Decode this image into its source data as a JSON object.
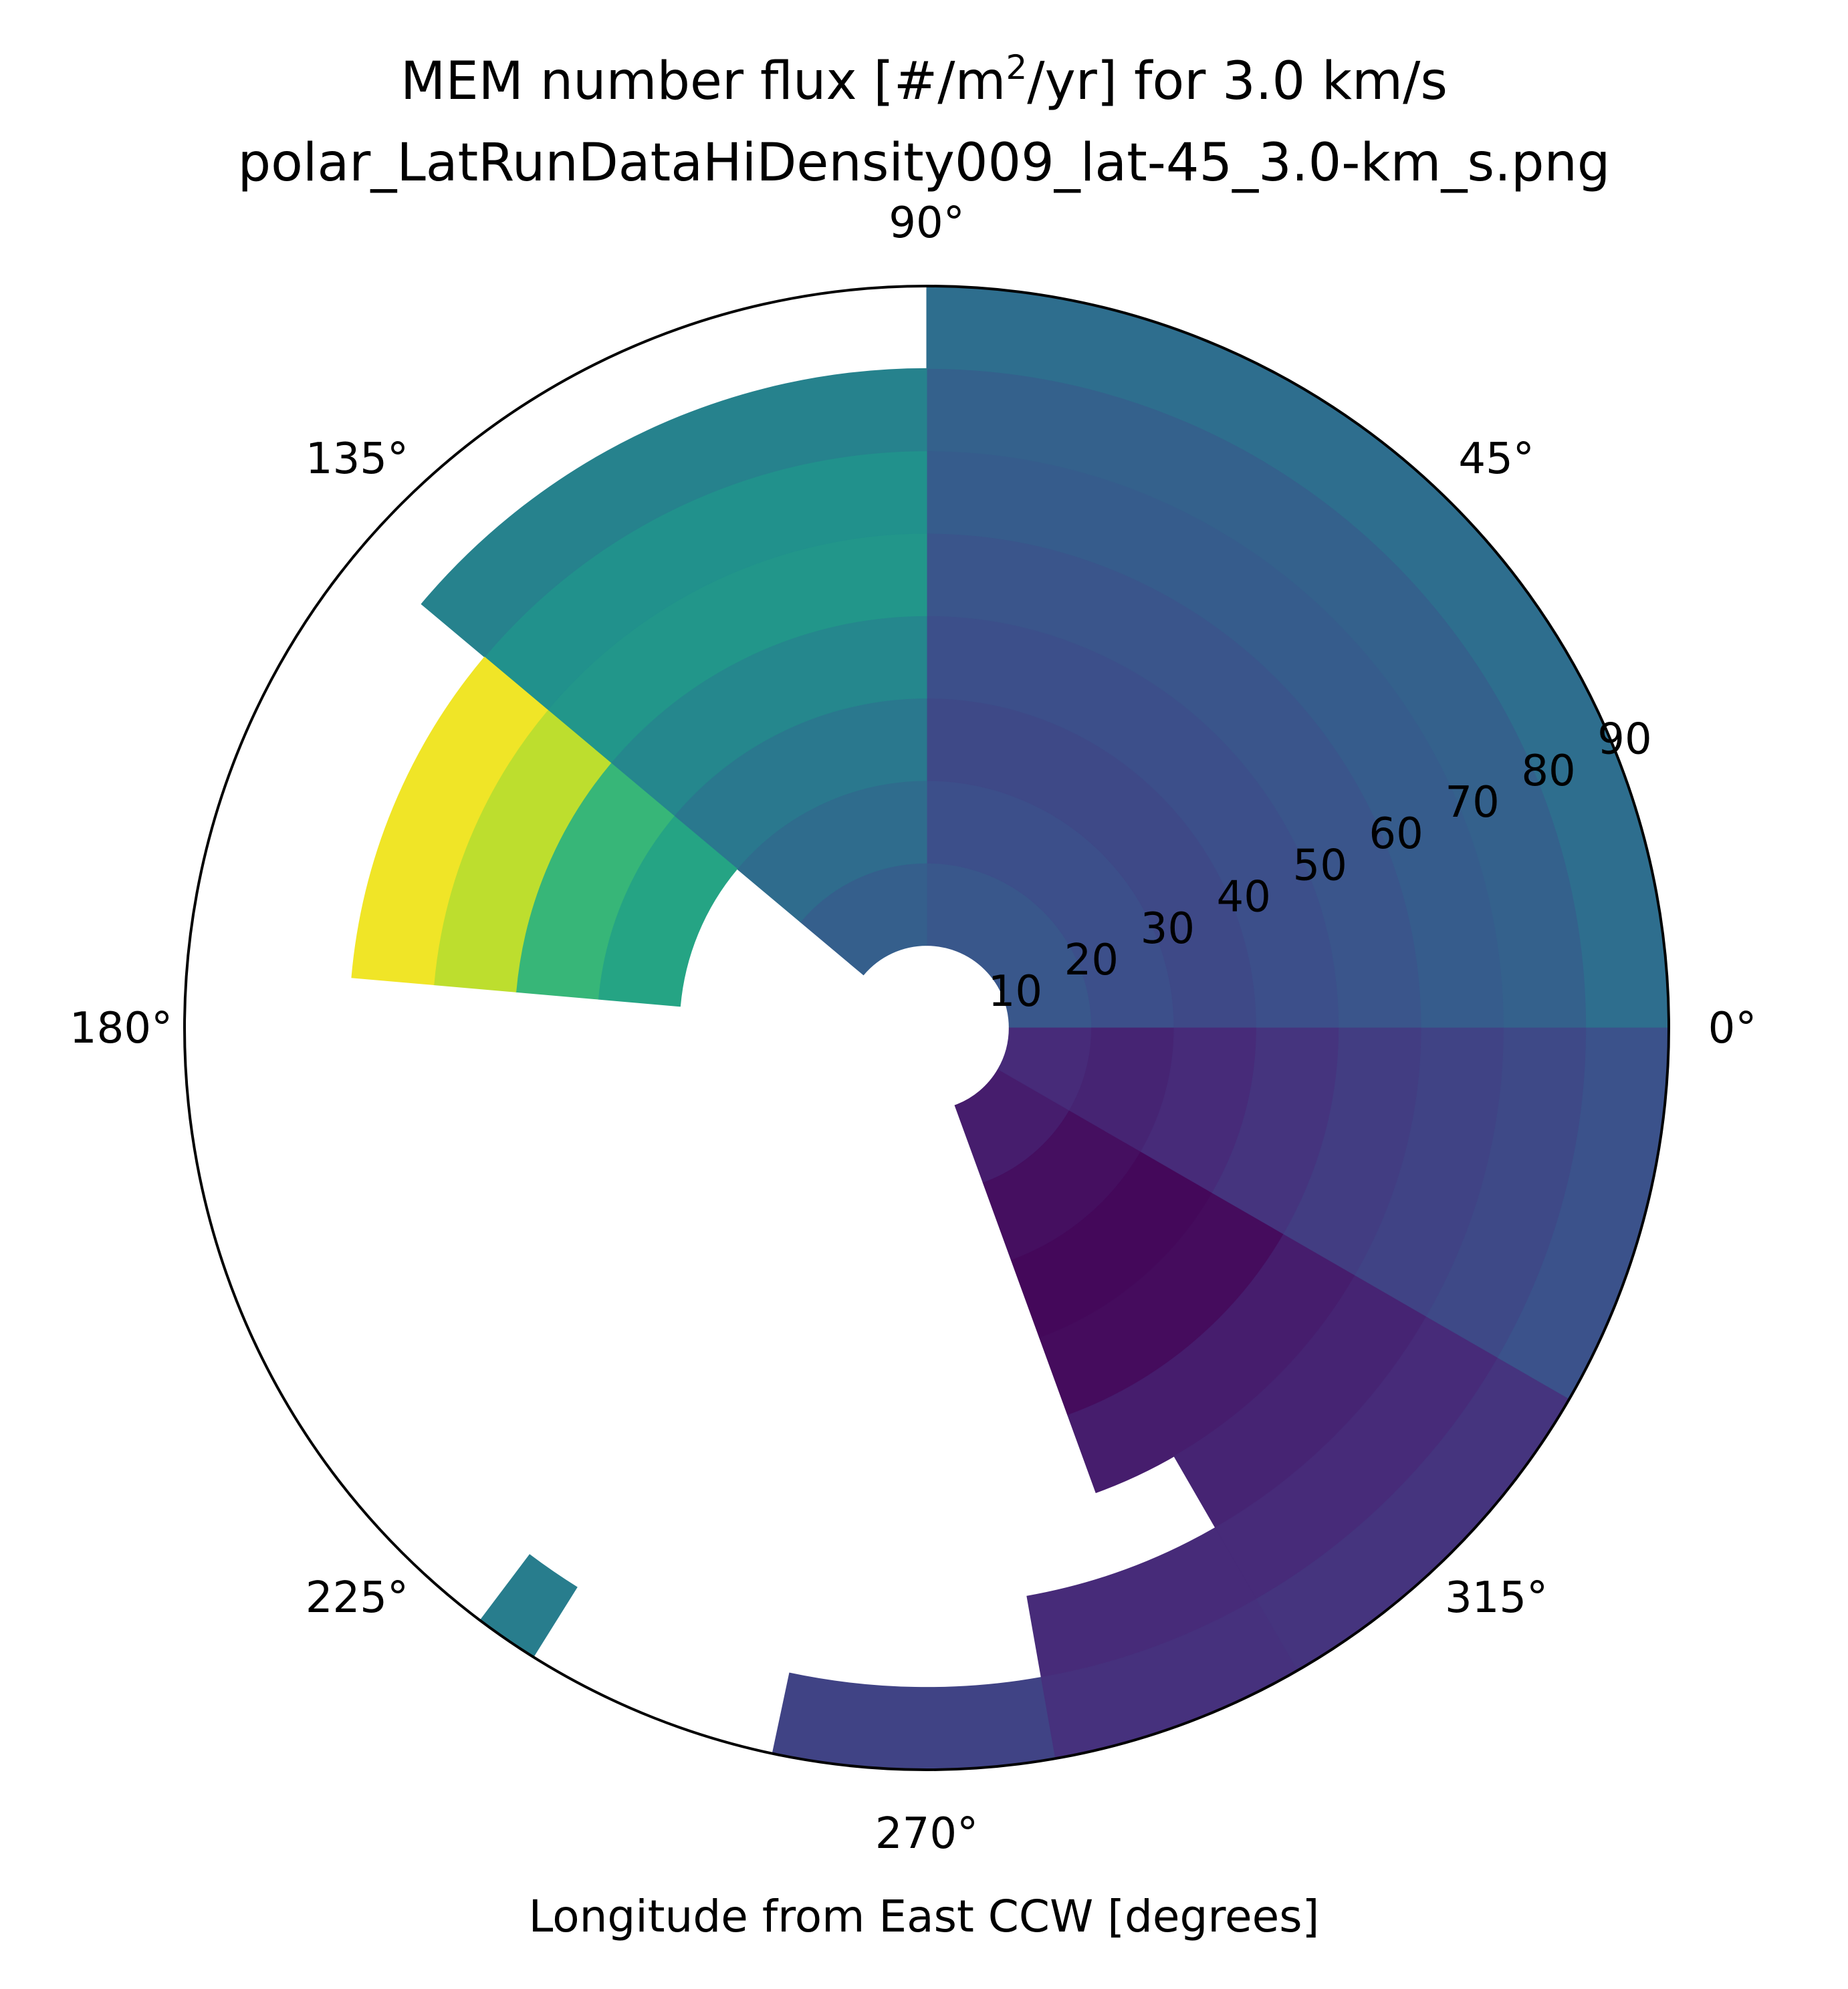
{
  "chart_data": {
    "type": "heatmap",
    "projection": "polar",
    "title_prefix": "MEM number flux [#/m",
    "title_superscript": "2",
    "title_suffix": "/yr] for 3.0 km/s",
    "subtitle": "polar_LatRunDataHiDensity009_lat-45_3.0-km_s.png",
    "xlabel": "Longitude from East CCW [degrees]",
    "angle_ticks": [
      "0°",
      "45°",
      "90°",
      "135°",
      "180°",
      "225°",
      "270°",
      "315°"
    ],
    "radial_ticks": [
      "10",
      "20",
      "30",
      "40",
      "50",
      "60",
      "70",
      "80",
      "90"
    ],
    "rlim": [
      0,
      90
    ],
    "colormap": "viridis",
    "grid": false,
    "legend": "none",
    "cells": [
      {
        "theta": [
          0,
          90
        ],
        "r": [
          10,
          20
        ],
        "v": 0.27
      },
      {
        "theta": [
          0,
          90
        ],
        "r": [
          20,
          30
        ],
        "v": 0.24
      },
      {
        "theta": [
          0,
          90
        ],
        "r": [
          30,
          40
        ],
        "v": 0.22
      },
      {
        "theta": [
          0,
          90
        ],
        "r": [
          40,
          50
        ],
        "v": 0.24
      },
      {
        "theta": [
          0,
          90
        ],
        "r": [
          50,
          60
        ],
        "v": 0.26
      },
      {
        "theta": [
          0,
          90
        ],
        "r": [
          60,
          70
        ],
        "v": 0.29
      },
      {
        "theta": [
          0,
          90
        ],
        "r": [
          70,
          80
        ],
        "v": 0.31
      },
      {
        "theta": [
          0,
          90
        ],
        "r": [
          80,
          90
        ],
        "v": 0.36
      },
      {
        "theta": [
          90,
          140
        ],
        "r": [
          10,
          20
        ],
        "v": 0.3
      },
      {
        "theta": [
          90,
          140
        ],
        "r": [
          20,
          30
        ],
        "v": 0.35
      },
      {
        "theta": [
          90,
          140
        ],
        "r": [
          30,
          40
        ],
        "v": 0.4
      },
      {
        "theta": [
          90,
          140
        ],
        "r": [
          40,
          50
        ],
        "v": 0.46
      },
      {
        "theta": [
          90,
          140
        ],
        "r": [
          50,
          60
        ],
        "v": 0.52
      },
      {
        "theta": [
          90,
          140
        ],
        "r": [
          60,
          70
        ],
        "v": 0.5
      },
      {
        "theta": [
          90,
          140
        ],
        "r": [
          70,
          80
        ],
        "v": 0.44
      },
      {
        "theta": [
          140,
          175
        ],
        "r": [
          30,
          40
        ],
        "v": 0.58
      },
      {
        "theta": [
          140,
          175
        ],
        "r": [
          40,
          50
        ],
        "v": 0.66
      },
      {
        "theta": [
          140,
          175
        ],
        "r": [
          50,
          60
        ],
        "v": 0.9
      },
      {
        "theta": [
          140,
          175
        ],
        "r": [
          60,
          70
        ],
        "v": 0.98
      },
      {
        "theta": [
          233,
          238
        ],
        "r": [
          80,
          90
        ],
        "v": 0.42
      },
      {
        "theta": [
          258,
          280
        ],
        "r": [
          80,
          90
        ],
        "v": 0.2
      },
      {
        "theta": [
          280,
          300
        ],
        "r": [
          70,
          80
        ],
        "v": 0.12
      },
      {
        "theta": [
          280,
          300
        ],
        "r": [
          80,
          90
        ],
        "v": 0.14
      },
      {
        "theta": [
          290,
          330
        ],
        "r": [
          10,
          20
        ],
        "v": 0.08
      },
      {
        "theta": [
          290,
          330
        ],
        "r": [
          20,
          30
        ],
        "v": 0.04
      },
      {
        "theta": [
          290,
          330
        ],
        "r": [
          30,
          40
        ],
        "v": 0.02
      },
      {
        "theta": [
          290,
          330
        ],
        "r": [
          40,
          50
        ],
        "v": 0.03
      },
      {
        "theta": [
          290,
          330
        ],
        "r": [
          50,
          60
        ],
        "v": 0.08
      },
      {
        "theta": [
          300,
          330
        ],
        "r": [
          60,
          70
        ],
        "v": 0.1
      },
      {
        "theta": [
          300,
          330
        ],
        "r": [
          70,
          80
        ],
        "v": 0.12
      },
      {
        "theta": [
          300,
          330
        ],
        "r": [
          80,
          90
        ],
        "v": 0.15
      },
      {
        "theta": [
          330,
          360
        ],
        "r": [
          10,
          20
        ],
        "v": 0.12
      },
      {
        "theta": [
          330,
          360
        ],
        "r": [
          20,
          30
        ],
        "v": 0.1
      },
      {
        "theta": [
          330,
          360
        ],
        "r": [
          30,
          40
        ],
        "v": 0.12
      },
      {
        "theta": [
          330,
          360
        ],
        "r": [
          40,
          50
        ],
        "v": 0.15
      },
      {
        "theta": [
          330,
          360
        ],
        "r": [
          50,
          60
        ],
        "v": 0.18
      },
      {
        "theta": [
          330,
          360
        ],
        "r": [
          60,
          70
        ],
        "v": 0.2
      },
      {
        "theta": [
          330,
          360
        ],
        "r": [
          70,
          80
        ],
        "v": 0.22
      },
      {
        "theta": [
          330,
          360
        ],
        "r": [
          80,
          90
        ],
        "v": 0.25
      }
    ]
  }
}
